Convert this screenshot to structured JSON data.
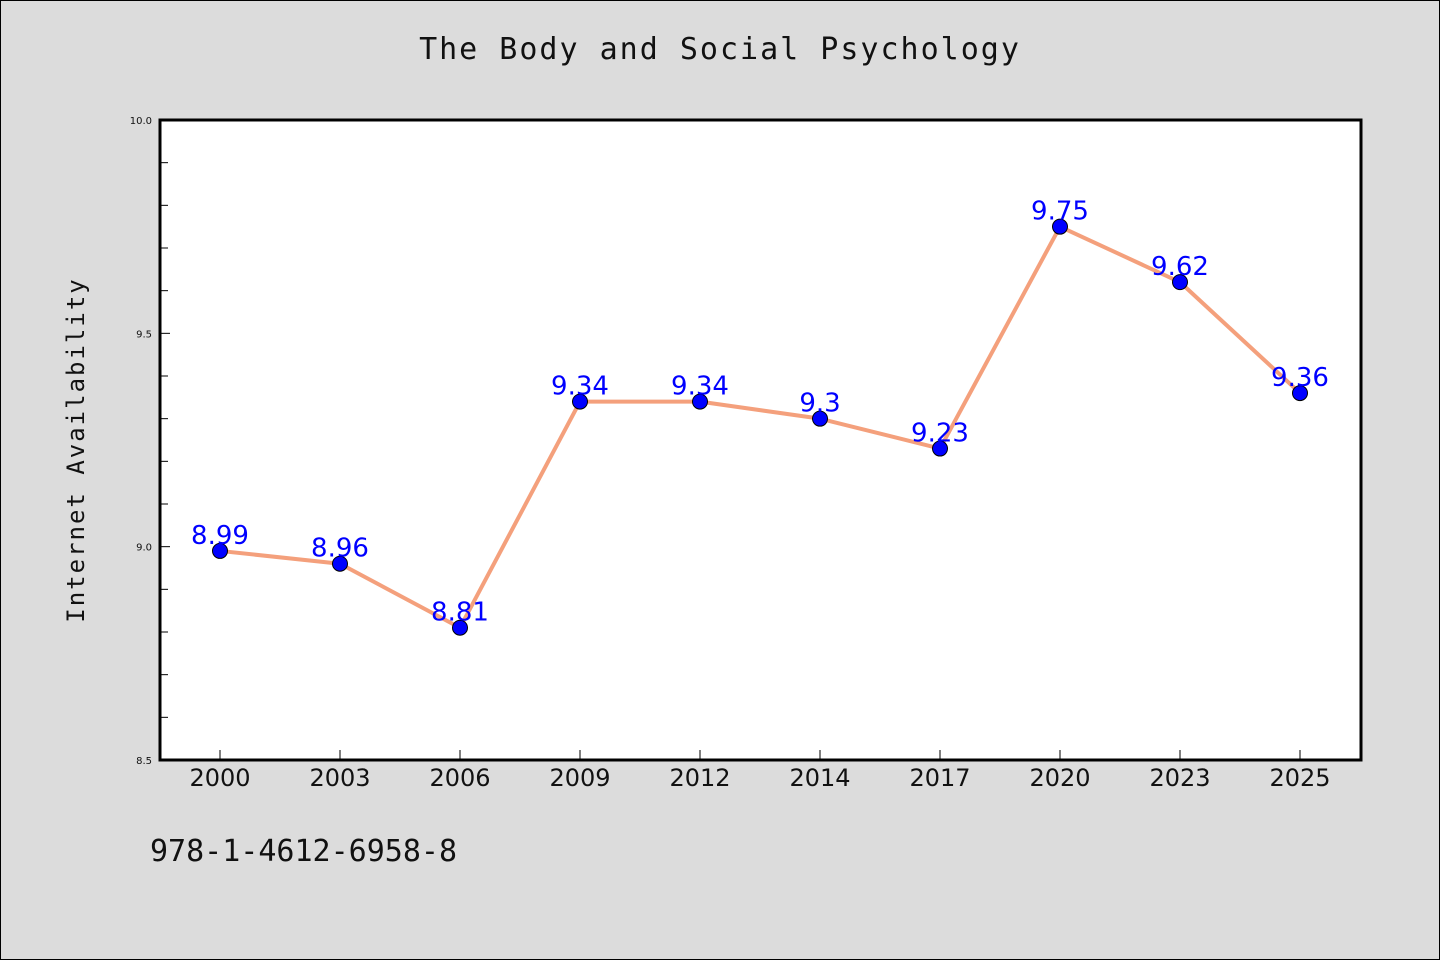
{
  "chart_data": {
    "type": "line",
    "title": "The Body and Social Psychology",
    "xlabel": "",
    "ylabel": "Internet Availability",
    "categories": [
      "2000",
      "2003",
      "2006",
      "2009",
      "2012",
      "2014",
      "2017",
      "2020",
      "2023",
      "2025"
    ],
    "series": [
      {
        "values": [
          8.99,
          8.96,
          8.81,
          9.34,
          9.34,
          9.3,
          9.23,
          9.75,
          9.62,
          9.36
        ],
        "labels": [
          "8.99",
          "8.96",
          "8.81",
          "9.34",
          "9.34",
          "9.3",
          "9.23",
          "9.75",
          "9.62",
          "9.36"
        ],
        "line_color": "#f4a07c",
        "marker_color": "#0000ff"
      }
    ],
    "ylim": [
      8.5,
      10.0
    ],
    "yticks": [
      "8.5",
      "9.0",
      "9.5",
      "10.0"
    ],
    "grid": false,
    "legend": "none"
  },
  "footer": {
    "isbn": "978-1-4612-6958-8"
  }
}
